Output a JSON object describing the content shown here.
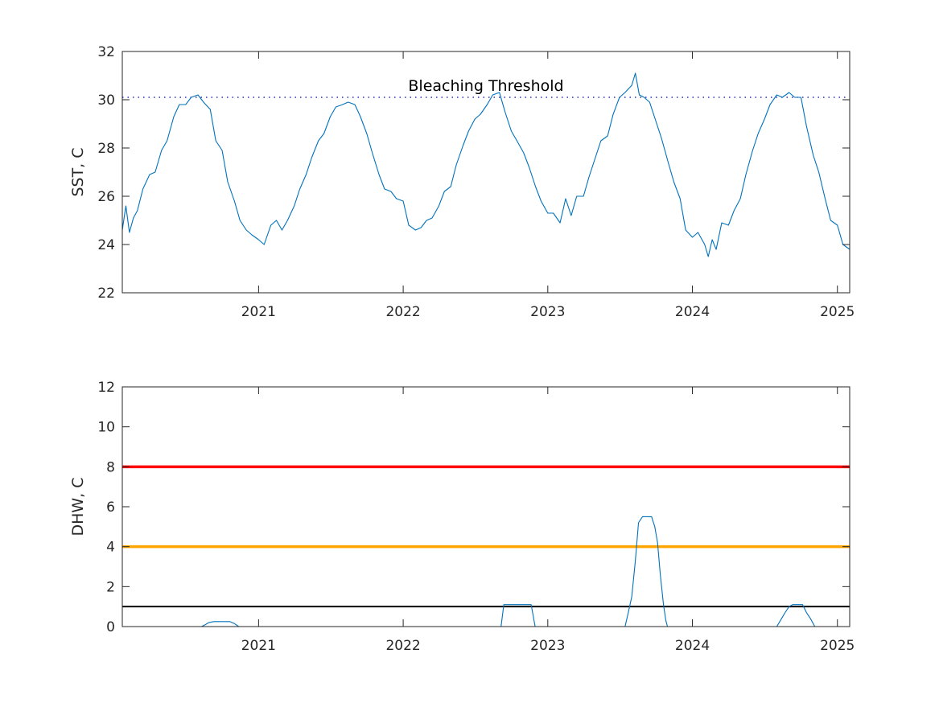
{
  "chart_data": [
    {
      "type": "line",
      "title": "",
      "xlabel": "",
      "ylabel": "SST, C",
      "xlim": [
        "2020-01-23",
        "2025-02-01"
      ],
      "ylim": [
        22,
        32
      ],
      "yticks": [
        22,
        24,
        26,
        28,
        30,
        32
      ],
      "xticks": [
        "2021",
        "2022",
        "2023",
        "2024",
        "2025"
      ],
      "grid": false,
      "legend": "none",
      "series": [
        {
          "color": "#0072bd",
          "points": [
            [
              "2020-01-23",
              24.6
            ],
            [
              "2020-02-01",
              25.6
            ],
            [
              "2020-02-10",
              24.5
            ],
            [
              "2020-02-20",
              25.1
            ],
            [
              "2020-03-01",
              25.4
            ],
            [
              "2020-03-15",
              26.3
            ],
            [
              "2020-04-01",
              26.9
            ],
            [
              "2020-04-15",
              27.0
            ],
            [
              "2020-05-01",
              27.9
            ],
            [
              "2020-05-15",
              28.3
            ],
            [
              "2020-06-01",
              29.3
            ],
            [
              "2020-06-15",
              29.8
            ],
            [
              "2020-07-01",
              29.8
            ],
            [
              "2020-07-15",
              30.1
            ],
            [
              "2020-08-01",
              30.2
            ],
            [
              "2020-08-15",
              29.9
            ],
            [
              "2020-09-01",
              29.6
            ],
            [
              "2020-09-15",
              28.3
            ],
            [
              "2020-10-01",
              27.9
            ],
            [
              "2020-10-15",
              26.6
            ],
            [
              "2020-11-01",
              25.8
            ],
            [
              "2020-11-15",
              25.0
            ],
            [
              "2020-12-01",
              24.6
            ],
            [
              "2020-12-15",
              24.4
            ],
            [
              "2021-01-01",
              24.2
            ],
            [
              "2021-01-15",
              24.0
            ],
            [
              "2021-02-01",
              24.8
            ],
            [
              "2021-02-15",
              25.0
            ],
            [
              "2021-03-01",
              24.6
            ],
            [
              "2021-03-15",
              25.0
            ],
            [
              "2021-04-01",
              25.6
            ],
            [
              "2021-04-15",
              26.3
            ],
            [
              "2021-05-01",
              26.9
            ],
            [
              "2021-05-15",
              27.6
            ],
            [
              "2021-06-01",
              28.3
            ],
            [
              "2021-06-15",
              28.6
            ],
            [
              "2021-07-01",
              29.3
            ],
            [
              "2021-07-15",
              29.7
            ],
            [
              "2021-08-01",
              29.8
            ],
            [
              "2021-08-15",
              29.9
            ],
            [
              "2021-09-01",
              29.8
            ],
            [
              "2021-09-15",
              29.3
            ],
            [
              "2021-10-01",
              28.6
            ],
            [
              "2021-10-15",
              27.8
            ],
            [
              "2021-11-01",
              26.9
            ],
            [
              "2021-11-15",
              26.3
            ],
            [
              "2021-12-01",
              26.2
            ],
            [
              "2021-12-15",
              25.9
            ],
            [
              "2022-01-01",
              25.8
            ],
            [
              "2022-01-15",
              24.8
            ],
            [
              "2022-02-01",
              24.6
            ],
            [
              "2022-02-15",
              24.7
            ],
            [
              "2022-03-01",
              25.0
            ],
            [
              "2022-03-15",
              25.1
            ],
            [
              "2022-04-01",
              25.6
            ],
            [
              "2022-04-15",
              26.2
            ],
            [
              "2022-05-01",
              26.4
            ],
            [
              "2022-05-15",
              27.3
            ],
            [
              "2022-06-01",
              28.1
            ],
            [
              "2022-06-15",
              28.7
            ],
            [
              "2022-07-01",
              29.2
            ],
            [
              "2022-07-15",
              29.4
            ],
            [
              "2022-08-01",
              29.8
            ],
            [
              "2022-08-15",
              30.2
            ],
            [
              "2022-09-01",
              30.3
            ],
            [
              "2022-09-15",
              29.5
            ],
            [
              "2022-10-01",
              28.7
            ],
            [
              "2022-10-15",
              28.3
            ],
            [
              "2022-11-01",
              27.8
            ],
            [
              "2022-11-15",
              27.2
            ],
            [
              "2022-12-01",
              26.4
            ],
            [
              "2022-12-15",
              25.8
            ],
            [
              "2023-01-01",
              25.3
            ],
            [
              "2023-01-15",
              25.3
            ],
            [
              "2023-02-01",
              24.9
            ],
            [
              "2023-02-15",
              25.9
            ],
            [
              "2023-03-01",
              25.2
            ],
            [
              "2023-03-15",
              26.0
            ],
            [
              "2023-04-01",
              26.0
            ],
            [
              "2023-04-15",
              26.8
            ],
            [
              "2023-05-01",
              27.6
            ],
            [
              "2023-05-15",
              28.3
            ],
            [
              "2023-06-01",
              28.5
            ],
            [
              "2023-06-15",
              29.4
            ],
            [
              "2023-07-01",
              30.1
            ],
            [
              "2023-07-15",
              30.3
            ],
            [
              "2023-08-01",
              30.6
            ],
            [
              "2023-08-10",
              31.1
            ],
            [
              "2023-08-20",
              30.2
            ],
            [
              "2023-09-01",
              30.1
            ],
            [
              "2023-09-15",
              29.9
            ],
            [
              "2023-10-01",
              29.1
            ],
            [
              "2023-10-15",
              28.4
            ],
            [
              "2023-11-01",
              27.4
            ],
            [
              "2023-11-15",
              26.6
            ],
            [
              "2023-12-01",
              25.9
            ],
            [
              "2023-12-15",
              24.6
            ],
            [
              "2024-01-01",
              24.3
            ],
            [
              "2024-01-15",
              24.5
            ],
            [
              "2024-02-01",
              24.0
            ],
            [
              "2024-02-10",
              23.5
            ],
            [
              "2024-02-20",
              24.2
            ],
            [
              "2024-03-01",
              23.8
            ],
            [
              "2024-03-15",
              24.9
            ],
            [
              "2024-04-01",
              24.8
            ],
            [
              "2024-04-15",
              25.4
            ],
            [
              "2024-05-01",
              25.9
            ],
            [
              "2024-05-15",
              26.9
            ],
            [
              "2024-06-01",
              27.9
            ],
            [
              "2024-06-15",
              28.6
            ],
            [
              "2024-07-01",
              29.2
            ],
            [
              "2024-07-15",
              29.8
            ],
            [
              "2024-08-01",
              30.2
            ],
            [
              "2024-08-15",
              30.1
            ],
            [
              "2024-09-01",
              30.3
            ],
            [
              "2024-09-15",
              30.1
            ],
            [
              "2024-10-01",
              30.1
            ],
            [
              "2024-10-15",
              28.9
            ],
            [
              "2024-11-01",
              27.7
            ],
            [
              "2024-11-15",
              27.0
            ],
            [
              "2024-12-01",
              25.9
            ],
            [
              "2024-12-15",
              25.0
            ],
            [
              "2025-01-01",
              24.8
            ],
            [
              "2025-01-15",
              24.0
            ],
            [
              "2025-02-01",
              23.8
            ]
          ]
        }
      ],
      "reference_lines": [
        {
          "y": 30.1,
          "style": "dotted",
          "color": "#0000b0",
          "label": "Bleaching Threshold"
        }
      ]
    },
    {
      "type": "line",
      "title": "",
      "xlabel": "",
      "ylabel": "DHW, C",
      "xlim": [
        "2020-01-23",
        "2025-02-01"
      ],
      "ylim": [
        0,
        12
      ],
      "yticks": [
        0,
        2,
        4,
        6,
        8,
        10,
        12
      ],
      "xticks": [
        "2021",
        "2022",
        "2023",
        "2024",
        "2025"
      ],
      "grid": false,
      "legend": "none",
      "series": [
        {
          "color": "#0072bd",
          "points": [
            [
              "2020-01-23",
              0
            ],
            [
              "2020-08-10",
              0
            ],
            [
              "2020-08-20",
              0.1
            ],
            [
              "2020-08-28",
              0.2
            ],
            [
              "2020-09-10",
              0.25
            ],
            [
              "2020-10-20",
              0.25
            ],
            [
              "2020-11-01",
              0.15
            ],
            [
              "2020-11-12",
              0
            ],
            [
              "2022-09-05",
              0
            ],
            [
              "2022-09-12",
              1.1
            ],
            [
              "2022-11-20",
              1.1
            ],
            [
              "2022-11-30",
              0
            ],
            [
              "2023-07-15",
              0
            ],
            [
              "2023-07-22",
              0.6
            ],
            [
              "2023-08-01",
              1.5
            ],
            [
              "2023-08-10",
              3.3
            ],
            [
              "2023-08-18",
              5.2
            ],
            [
              "2023-08-28",
              5.5
            ],
            [
              "2023-09-20",
              5.5
            ],
            [
              "2023-09-28",
              5.0
            ],
            [
              "2023-10-05",
              4.2
            ],
            [
              "2023-10-12",
              2.6
            ],
            [
              "2023-10-20",
              1.1
            ],
            [
              "2023-10-26",
              0.3
            ],
            [
              "2023-10-30",
              0
            ],
            [
              "2024-08-01",
              0
            ],
            [
              "2024-08-10",
              0.3
            ],
            [
              "2024-08-22",
              0.7
            ],
            [
              "2024-09-01",
              1.0
            ],
            [
              "2024-09-10",
              1.1
            ],
            [
              "2024-10-05",
              1.1
            ],
            [
              "2024-10-15",
              0.7
            ],
            [
              "2024-10-25",
              0.4
            ],
            [
              "2024-11-05",
              0
            ],
            [
              "2025-02-01",
              0
            ]
          ]
        }
      ],
      "reference_lines": [
        {
          "y": 8,
          "color": "#ff0000",
          "style": "solid"
        },
        {
          "y": 4,
          "color": "#ffa500",
          "style": "solid"
        },
        {
          "y": 1,
          "color": "#000000",
          "style": "solid"
        }
      ]
    }
  ]
}
